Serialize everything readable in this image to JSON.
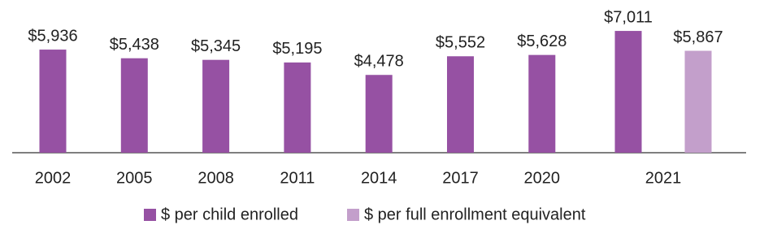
{
  "chart_data": {
    "type": "bar",
    "categories": [
      "2002",
      "2005",
      "2008",
      "2011",
      "2014",
      "2017",
      "2020",
      "2021"
    ],
    "series": [
      {
        "name": "$ per child enrolled",
        "color": "#9651a3",
        "values": [
          5936,
          5438,
          5345,
          5195,
          4478,
          5552,
          5628,
          7011
        ],
        "value_labels": [
          "$5,936",
          "$5,438",
          "$5,345",
          "$5,195",
          "$4,478",
          "$5,552",
          "$5,628",
          "$7,011"
        ]
      },
      {
        "name": "$ per full enrollment equivalent",
        "color": "#c39fcb",
        "values": [
          null,
          null,
          null,
          null,
          null,
          null,
          null,
          5867
        ],
        "value_labels": [
          null,
          null,
          null,
          null,
          null,
          null,
          null,
          "$5,867"
        ]
      }
    ],
    "ylim": [
      0,
      7000
    ],
    "legend": "bottom"
  }
}
